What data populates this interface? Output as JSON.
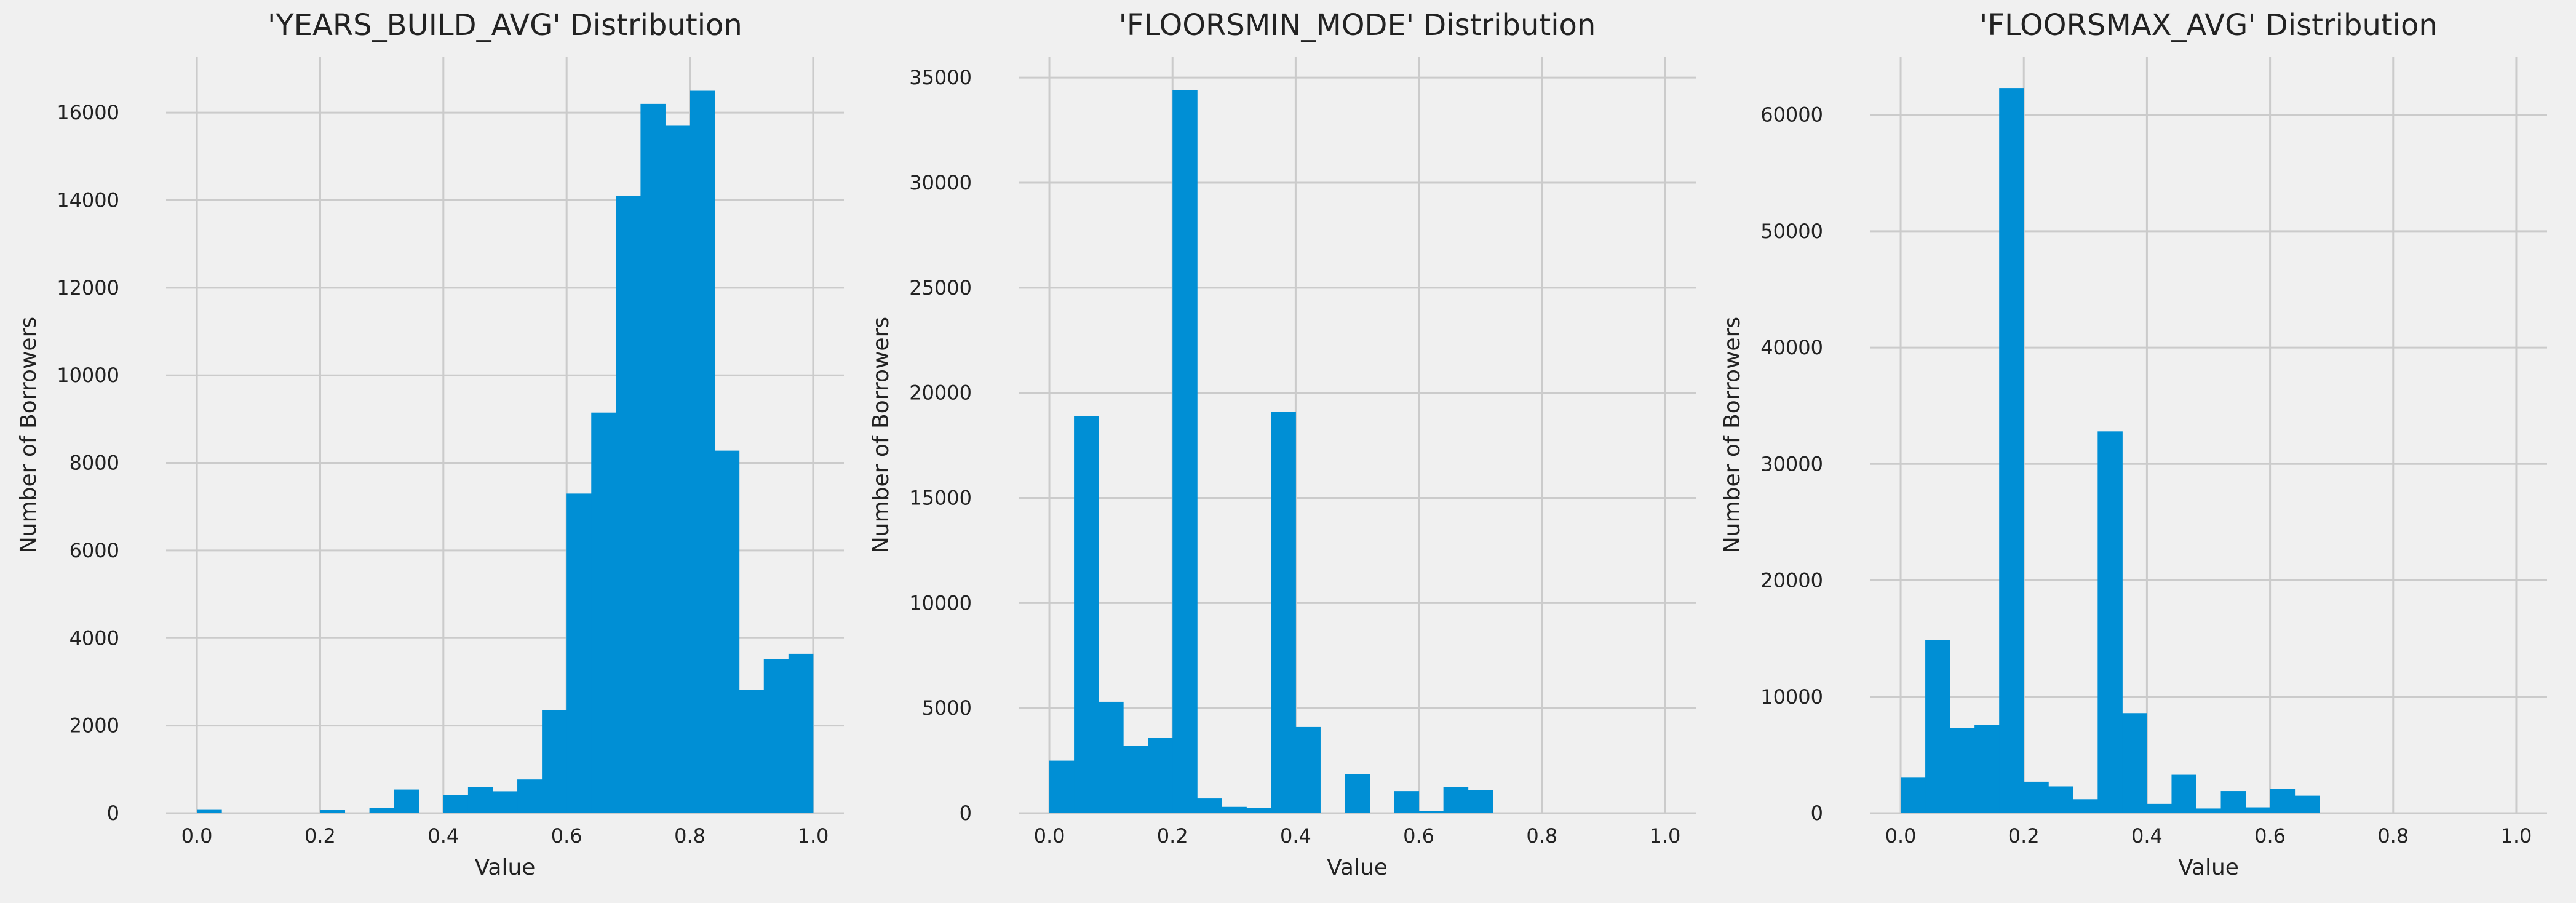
{
  "colors": {
    "background": "#f0f0f0",
    "bar": "#008fd5",
    "grid": "#cbcbcb",
    "text": "#222222"
  },
  "chart_data": [
    {
      "type": "bar",
      "title": "'YEARS_BUILD_AVG' Distribution",
      "xlabel": "Value",
      "ylabel": "Number of Borrowers",
      "xlim": [
        -0.05,
        1.05
      ],
      "ylim": [
        0,
        17280
      ],
      "grid": true,
      "xticks": [
        0.0,
        0.2,
        0.4,
        0.6,
        0.8,
        1.0
      ],
      "xtick_labels": [
        "0.0",
        "0.2",
        "0.4",
        "0.6",
        "0.8",
        "1.0"
      ],
      "yticks": [
        0,
        2000,
        4000,
        6000,
        8000,
        10000,
        12000,
        14000,
        16000
      ],
      "ytick_labels": [
        "0",
        "2000",
        "4000",
        "6000",
        "8000",
        "10000",
        "12000",
        "14000",
        "16000"
      ],
      "bin_edges": [
        0.0,
        0.04,
        0.08,
        0.12,
        0.16,
        0.2,
        0.24,
        0.28,
        0.32,
        0.36,
        0.4,
        0.44,
        0.48,
        0.52,
        0.56,
        0.6,
        0.64,
        0.68,
        0.72,
        0.76,
        0.8,
        0.84,
        0.88,
        0.92,
        0.96,
        1.0
      ],
      "values": [
        90,
        0,
        0,
        0,
        0,
        70,
        0,
        120,
        540,
        0,
        420,
        600,
        500,
        770,
        2350,
        7300,
        9150,
        14100,
        16200,
        15700,
        16500,
        8280,
        2820,
        3520,
        3640
      ]
    },
    {
      "type": "bar",
      "title": "'FLOORSMIN_MODE' Distribution",
      "xlabel": "Value",
      "ylabel": "Number of Borrowers",
      "xlim": [
        -0.05,
        1.05
      ],
      "ylim": [
        0,
        36000
      ],
      "grid": true,
      "xticks": [
        0.0,
        0.2,
        0.4,
        0.6,
        0.8,
        1.0
      ],
      "xtick_labels": [
        "0.0",
        "0.2",
        "0.4",
        "0.6",
        "0.8",
        "1.0"
      ],
      "yticks": [
        0,
        5000,
        10000,
        15000,
        20000,
        25000,
        30000,
        35000
      ],
      "ytick_labels": [
        "0",
        "5000",
        "10000",
        "15000",
        "20000",
        "25000",
        "30000",
        "35000"
      ],
      "bin_edges": [
        0.0,
        0.04,
        0.08,
        0.12,
        0.16,
        0.2,
        0.24,
        0.28,
        0.32,
        0.36,
        0.4,
        0.44,
        0.48,
        0.52,
        0.56,
        0.6,
        0.64,
        0.68,
        0.72,
        0.76,
        0.8,
        0.84,
        0.88,
        0.92,
        0.96,
        1.0
      ],
      "values": [
        2500,
        18900,
        5300,
        3200,
        3600,
        34400,
        700,
        300,
        250,
        19100,
        4100,
        0,
        1850,
        0,
        1050,
        100,
        1250,
        1100,
        0,
        0,
        0,
        0,
        0,
        0,
        0
      ]
    },
    {
      "type": "bar",
      "title": "'FLOORSMAX_AVG' Distribution",
      "xlabel": "Value",
      "ylabel": "Number of Borrowers",
      "xlim": [
        -0.05,
        1.05
      ],
      "ylim": [
        0,
        65000
      ],
      "grid": true,
      "xticks": [
        0.0,
        0.2,
        0.4,
        0.6,
        0.8,
        1.0
      ],
      "xtick_labels": [
        "0.0",
        "0.2",
        "0.4",
        "0.6",
        "0.8",
        "1.0"
      ],
      "yticks": [
        0,
        10000,
        20000,
        30000,
        40000,
        50000,
        60000
      ],
      "ytick_labels": [
        "0",
        "10000",
        "20000",
        "30000",
        "40000",
        "50000",
        "60000"
      ],
      "bin_edges": [
        0.0,
        0.04,
        0.08,
        0.12,
        0.16,
        0.2,
        0.24,
        0.28,
        0.32,
        0.36,
        0.4,
        0.44,
        0.48,
        0.52,
        0.56,
        0.6,
        0.64,
        0.68,
        0.72,
        0.76,
        0.8,
        0.84,
        0.88,
        0.92,
        0.96,
        1.0
      ],
      "values": [
        3100,
        14900,
        7300,
        7600,
        62300,
        2700,
        2300,
        1200,
        32800,
        8600,
        800,
        3300,
        400,
        1900,
        500,
        2100,
        1500,
        0,
        0,
        0,
        0,
        0,
        0,
        0,
        0
      ]
    }
  ]
}
